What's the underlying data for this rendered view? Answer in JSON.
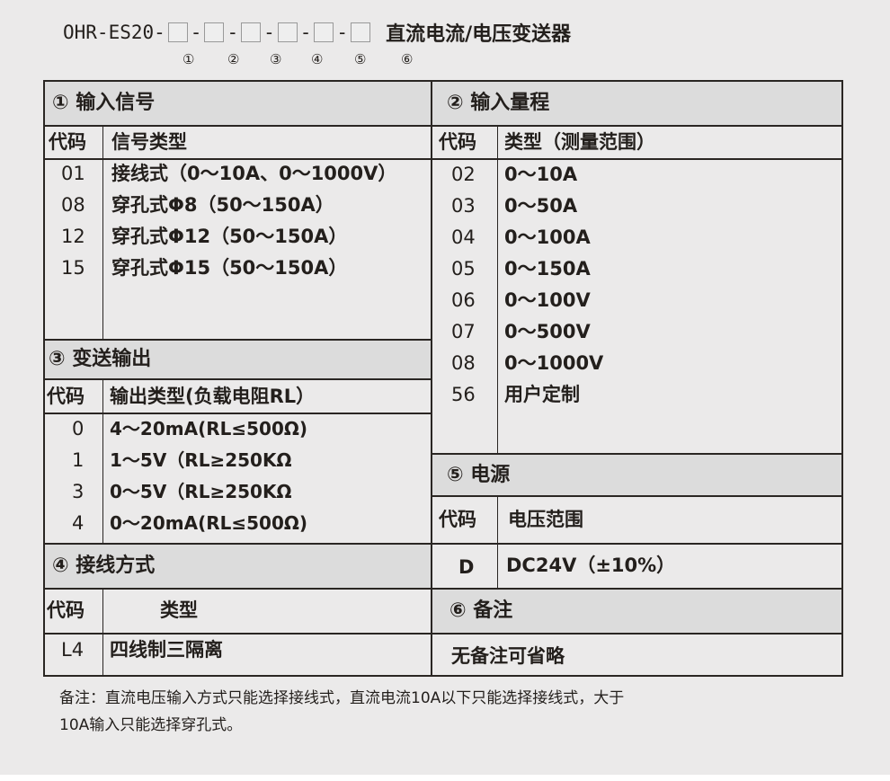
{
  "title": {
    "model": "OHR-ES20-",
    "dash": "-",
    "name": "直流电流/电压变送器",
    "slots": [
      "①",
      "②",
      "③",
      "④",
      "⑤",
      "⑥"
    ]
  },
  "s1": {
    "title": "① 输入信号",
    "code_h": "代码",
    "type_h": "信号类型",
    "rows": [
      {
        "code": "01",
        "type": "接线式（0～10A、0～1000V）"
      },
      {
        "code": "08",
        "type": "穿孔式Φ8（50～150A）"
      },
      {
        "code": "12",
        "type": "穿孔式Φ12（50～150A）"
      },
      {
        "code": "15",
        "type": "穿孔式Φ15（50～150A）"
      }
    ]
  },
  "s2": {
    "title": "② 输入量程",
    "code_h": "代码",
    "type_h": "类型（测量范围）",
    "rows": [
      {
        "code": "02",
        "type": "0～10A"
      },
      {
        "code": "03",
        "type": "0～50A"
      },
      {
        "code": "04",
        "type": "0～100A"
      },
      {
        "code": "05",
        "type": "0～150A"
      },
      {
        "code": "06",
        "type": "0～100V"
      },
      {
        "code": "07",
        "type": "0～500V"
      },
      {
        "code": "08",
        "type": "0～1000V"
      },
      {
        "code": "56",
        "type": "用户定制"
      }
    ]
  },
  "s3": {
    "title": "③ 变送输出",
    "code_h": "代码",
    "type_h": "输出类型(负载电阻RL）",
    "rows": [
      {
        "code": "0",
        "type": "4～20mA(RL≤500Ω)"
      },
      {
        "code": "1",
        "type": "1～5V（RL≥250KΩ"
      },
      {
        "code": "3",
        "type": "0～5V（RL≥250KΩ"
      },
      {
        "code": "4",
        "type": "0～20mA(RL≤500Ω)"
      }
    ]
  },
  "s4": {
    "title": "④ 接线方式",
    "code_h": "代码",
    "type_h": "类型",
    "rows": [
      {
        "code": "L4",
        "type": "四线制三隔离"
      }
    ]
  },
  "s5": {
    "title": "⑤ 电源",
    "code_h": "代码",
    "type_h": "电压范围",
    "rows": [
      {
        "code": "D",
        "type": "DC24V（±10%）"
      }
    ]
  },
  "s6": {
    "title": "⑥ 备注",
    "text": "无备注可省略"
  },
  "note": {
    "line1": "备注：直流电压输入方式只能选择接线式，直流电流10A以下只能选择接线式，大于",
    "line2": "10A输入只能选择穿孔式。"
  }
}
